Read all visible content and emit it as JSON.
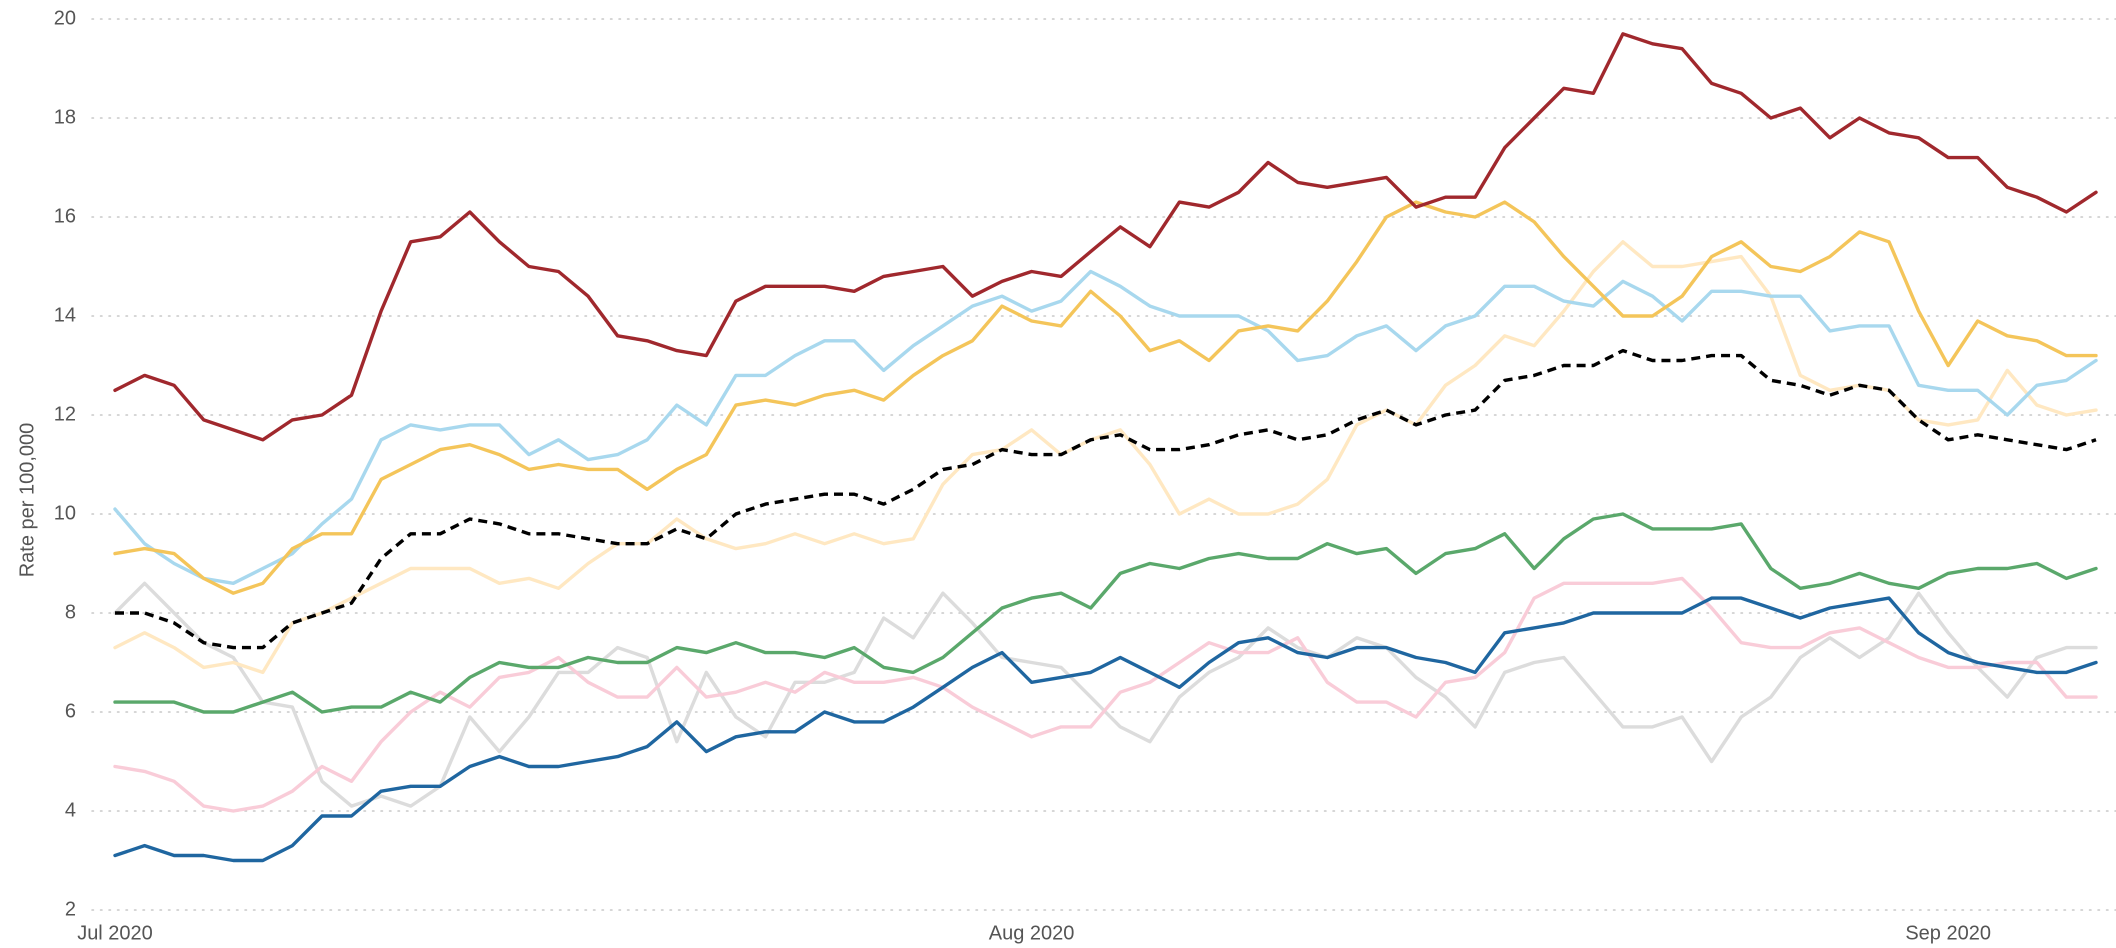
{
  "chart_data": {
    "type": "line",
    "y_label": "Rate per 100,000",
    "categories": [
      "Jul 2020",
      null,
      null,
      null,
      null,
      null,
      null,
      null,
      null,
      null,
      null,
      null,
      null,
      null,
      null,
      null,
      null,
      null,
      null,
      null,
      null,
      null,
      null,
      null,
      null,
      null,
      null,
      null,
      null,
      null,
      null,
      "Aug 2020",
      null,
      null,
      null,
      null,
      null,
      null,
      null,
      null,
      null,
      null,
      null,
      null,
      null,
      null,
      null,
      null,
      null,
      null,
      null,
      null,
      null,
      null,
      null,
      null,
      null,
      null,
      null,
      null,
      null,
      null,
      "Sep 2020",
      null,
      null,
      null,
      null,
      null
    ],
    "ylim": [
      2,
      20
    ],
    "yticks": [
      2,
      4,
      6,
      8,
      10,
      12,
      14,
      16,
      18,
      20
    ],
    "grid": true,
    "series": [
      {
        "color": "#dcdcdc",
        "values": [
          8.0,
          8.6,
          8.0,
          7.4,
          7.1,
          6.2,
          6.1,
          4.6,
          4.1,
          4.3,
          4.1,
          4.5,
          5.9,
          5.2,
          5.9,
          6.8,
          6.8,
          7.3,
          7.1,
          5.4,
          6.8,
          5.9,
          5.5,
          6.6,
          6.6,
          6.8,
          7.9,
          7.5,
          8.4,
          7.8,
          7.1,
          7.0,
          6.9,
          6.3,
          5.7,
          5.4,
          6.3,
          6.8,
          7.1,
          7.7,
          7.3,
          7.1,
          7.5,
          7.3,
          6.7,
          6.3,
          5.7,
          6.8,
          7.0,
          7.1,
          6.4,
          5.7,
          5.7,
          5.9,
          5.0,
          5.9,
          6.3,
          7.1,
          7.5,
          7.1,
          7.5,
          8.4,
          7.6,
          6.9,
          6.3,
          7.1,
          7.3,
          7.3
        ]
      },
      {
        "color": "#f9ccd8",
        "values": [
          4.9,
          4.8,
          4.6,
          4.1,
          4.0,
          4.1,
          4.4,
          4.9,
          4.6,
          5.4,
          6.0,
          6.4,
          6.1,
          6.7,
          6.8,
          7.1,
          6.6,
          6.3,
          6.3,
          6.9,
          6.3,
          6.4,
          6.6,
          6.4,
          6.8,
          6.6,
          6.6,
          6.7,
          6.5,
          6.1,
          5.8,
          5.5,
          5.7,
          5.7,
          6.4,
          6.6,
          7.0,
          7.4,
          7.2,
          7.2,
          7.5,
          6.6,
          6.2,
          6.2,
          5.9,
          6.6,
          6.7,
          7.2,
          8.3,
          8.6,
          8.6,
          8.6,
          8.6,
          8.7,
          8.1,
          7.4,
          7.3,
          7.3,
          7.6,
          7.7,
          7.4,
          7.1,
          6.9,
          6.9,
          7.0,
          7.0,
          6.3,
          6.3
        ]
      },
      {
        "color": "#ffe8c2",
        "values": [
          7.3,
          7.6,
          7.3,
          6.9,
          7.0,
          6.8,
          7.8,
          8.0,
          8.3,
          8.6,
          8.9,
          8.9,
          8.9,
          8.6,
          8.7,
          8.5,
          9.0,
          9.4,
          9.4,
          9.9,
          9.5,
          9.3,
          9.4,
          9.6,
          9.4,
          9.6,
          9.4,
          9.5,
          10.6,
          11.2,
          11.3,
          11.7,
          11.2,
          11.5,
          11.7,
          11.0,
          10.0,
          10.3,
          10.0,
          10.0,
          10.2,
          10.7,
          11.8,
          12.1,
          11.8,
          12.6,
          13.0,
          13.6,
          13.4,
          14.1,
          14.9,
          15.5,
          15.0,
          15.0,
          15.1,
          15.2,
          14.4,
          12.8,
          12.5,
          12.6,
          12.5,
          11.9,
          11.8,
          11.9,
          12.9,
          12.2,
          12.0,
          12.1
        ]
      },
      {
        "color": "#1f66a0",
        "values": [
          3.1,
          3.3,
          3.1,
          3.1,
          3.0,
          3.0,
          3.3,
          3.9,
          3.9,
          4.4,
          4.5,
          4.5,
          4.9,
          5.1,
          4.9,
          4.9,
          5.0,
          5.1,
          5.3,
          5.8,
          5.2,
          5.5,
          5.6,
          5.6,
          6.0,
          5.8,
          5.8,
          6.1,
          6.5,
          6.9,
          7.2,
          6.6,
          6.7,
          6.8,
          7.1,
          6.8,
          6.5,
          7.0,
          7.4,
          7.5,
          7.2,
          7.1,
          7.3,
          7.3,
          7.1,
          7.0,
          6.8,
          7.6,
          7.7,
          7.8,
          8.0,
          8.0,
          8.0,
          8.0,
          8.3,
          8.3,
          8.1,
          7.9,
          8.1,
          8.2,
          8.3,
          7.6,
          7.2,
          7.0,
          6.9,
          6.8,
          6.8,
          7.0
        ]
      },
      {
        "color": "#5aa86b",
        "values": [
          6.2,
          6.2,
          6.2,
          6.0,
          6.0,
          6.2,
          6.4,
          6.0,
          6.1,
          6.1,
          6.4,
          6.2,
          6.7,
          7.0,
          6.9,
          6.9,
          7.1,
          7.0,
          7.0,
          7.3,
          7.2,
          7.4,
          7.2,
          7.2,
          7.1,
          7.3,
          6.9,
          6.8,
          7.1,
          7.6,
          8.1,
          8.3,
          8.4,
          8.1,
          8.8,
          9.0,
          8.9,
          9.1,
          9.2,
          9.1,
          9.1,
          9.4,
          9.2,
          9.3,
          8.8,
          9.2,
          9.3,
          9.6,
          8.9,
          9.5,
          9.9,
          10.0,
          9.7,
          9.7,
          9.7,
          9.8,
          8.9,
          8.5,
          8.6,
          8.8,
          8.6,
          8.5,
          8.8,
          8.9,
          8.9,
          9.0,
          8.7,
          8.9
        ]
      },
      {
        "color": "#a8d8ee",
        "values": [
          10.1,
          9.4,
          9.0,
          8.7,
          8.6,
          8.9,
          9.2,
          9.8,
          10.3,
          11.5,
          11.8,
          11.7,
          11.8,
          11.8,
          11.2,
          11.5,
          11.1,
          11.2,
          11.5,
          12.2,
          11.8,
          12.8,
          12.8,
          13.2,
          13.5,
          13.5,
          12.9,
          13.4,
          13.8,
          14.2,
          14.4,
          14.1,
          14.3,
          14.9,
          14.6,
          14.2,
          14.0,
          14.0,
          14.0,
          13.7,
          13.1,
          13.2,
          13.6,
          13.8,
          13.3,
          13.8,
          14.0,
          14.6,
          14.6,
          14.3,
          14.2,
          14.7,
          14.4,
          13.9,
          14.5,
          14.5,
          14.4,
          14.4,
          13.7,
          13.8,
          13.8,
          12.6,
          12.5,
          12.5,
          12.0,
          12.6,
          12.7,
          13.1
        ]
      },
      {
        "color": "#f4c55a",
        "values": [
          9.2,
          9.3,
          9.2,
          8.7,
          8.4,
          8.6,
          9.3,
          9.6,
          9.6,
          10.7,
          11.0,
          11.3,
          11.4,
          11.2,
          10.9,
          11.0,
          10.9,
          10.9,
          10.5,
          10.9,
          11.2,
          12.2,
          12.3,
          12.2,
          12.4,
          12.5,
          12.3,
          12.8,
          13.2,
          13.5,
          14.2,
          13.9,
          13.8,
          14.5,
          14.0,
          13.3,
          13.5,
          13.1,
          13.7,
          13.8,
          13.7,
          14.3,
          15.1,
          16.0,
          16.3,
          16.1,
          16.0,
          16.3,
          15.9,
          15.2,
          14.6,
          14.0,
          14.0,
          14.4,
          15.2,
          15.5,
          15.0,
          14.9,
          15.2,
          15.7,
          15.5,
          14.1,
          13.0,
          13.9,
          13.6,
          13.5,
          13.2,
          13.2
        ]
      },
      {
        "color": "#000000",
        "dash": true,
        "values": [
          8.0,
          8.0,
          7.8,
          7.4,
          7.3,
          7.3,
          7.8,
          8.0,
          8.2,
          9.1,
          9.6,
          9.6,
          9.9,
          9.8,
          9.6,
          9.6,
          9.5,
          9.4,
          9.4,
          9.7,
          9.5,
          10.0,
          10.2,
          10.3,
          10.4,
          10.4,
          10.2,
          10.5,
          10.9,
          11.0,
          11.3,
          11.2,
          11.2,
          11.5,
          11.6,
          11.3,
          11.3,
          11.4,
          11.6,
          11.7,
          11.5,
          11.6,
          11.9,
          12.1,
          11.8,
          12.0,
          12.1,
          12.7,
          12.8,
          13.0,
          13.0,
          13.3,
          13.1,
          13.1,
          13.2,
          13.2,
          12.7,
          12.6,
          12.4,
          12.6,
          12.5,
          11.9,
          11.5,
          11.6,
          11.5,
          11.4,
          11.3,
          11.5
        ]
      },
      {
        "color": "#a0282d",
        "values": [
          12.5,
          12.8,
          12.6,
          11.9,
          11.7,
          11.5,
          11.9,
          12.0,
          12.4,
          14.1,
          15.5,
          15.6,
          16.1,
          15.5,
          15.0,
          14.9,
          14.4,
          13.6,
          13.5,
          13.3,
          13.2,
          14.3,
          14.6,
          14.6,
          14.6,
          14.5,
          14.8,
          14.9,
          15.0,
          14.4,
          14.7,
          14.9,
          14.8,
          15.3,
          15.8,
          15.4,
          16.3,
          16.2,
          16.5,
          17.1,
          16.7,
          16.6,
          16.7,
          16.8,
          16.2,
          16.4,
          16.4,
          17.4,
          18.0,
          18.6,
          18.5,
          19.7,
          19.5,
          19.4,
          18.7,
          18.5,
          18.0,
          18.2,
          17.6,
          18.0,
          17.7,
          17.6,
          17.2,
          17.2,
          16.6,
          16.4,
          16.1,
          16.5
        ]
      }
    ]
  }
}
